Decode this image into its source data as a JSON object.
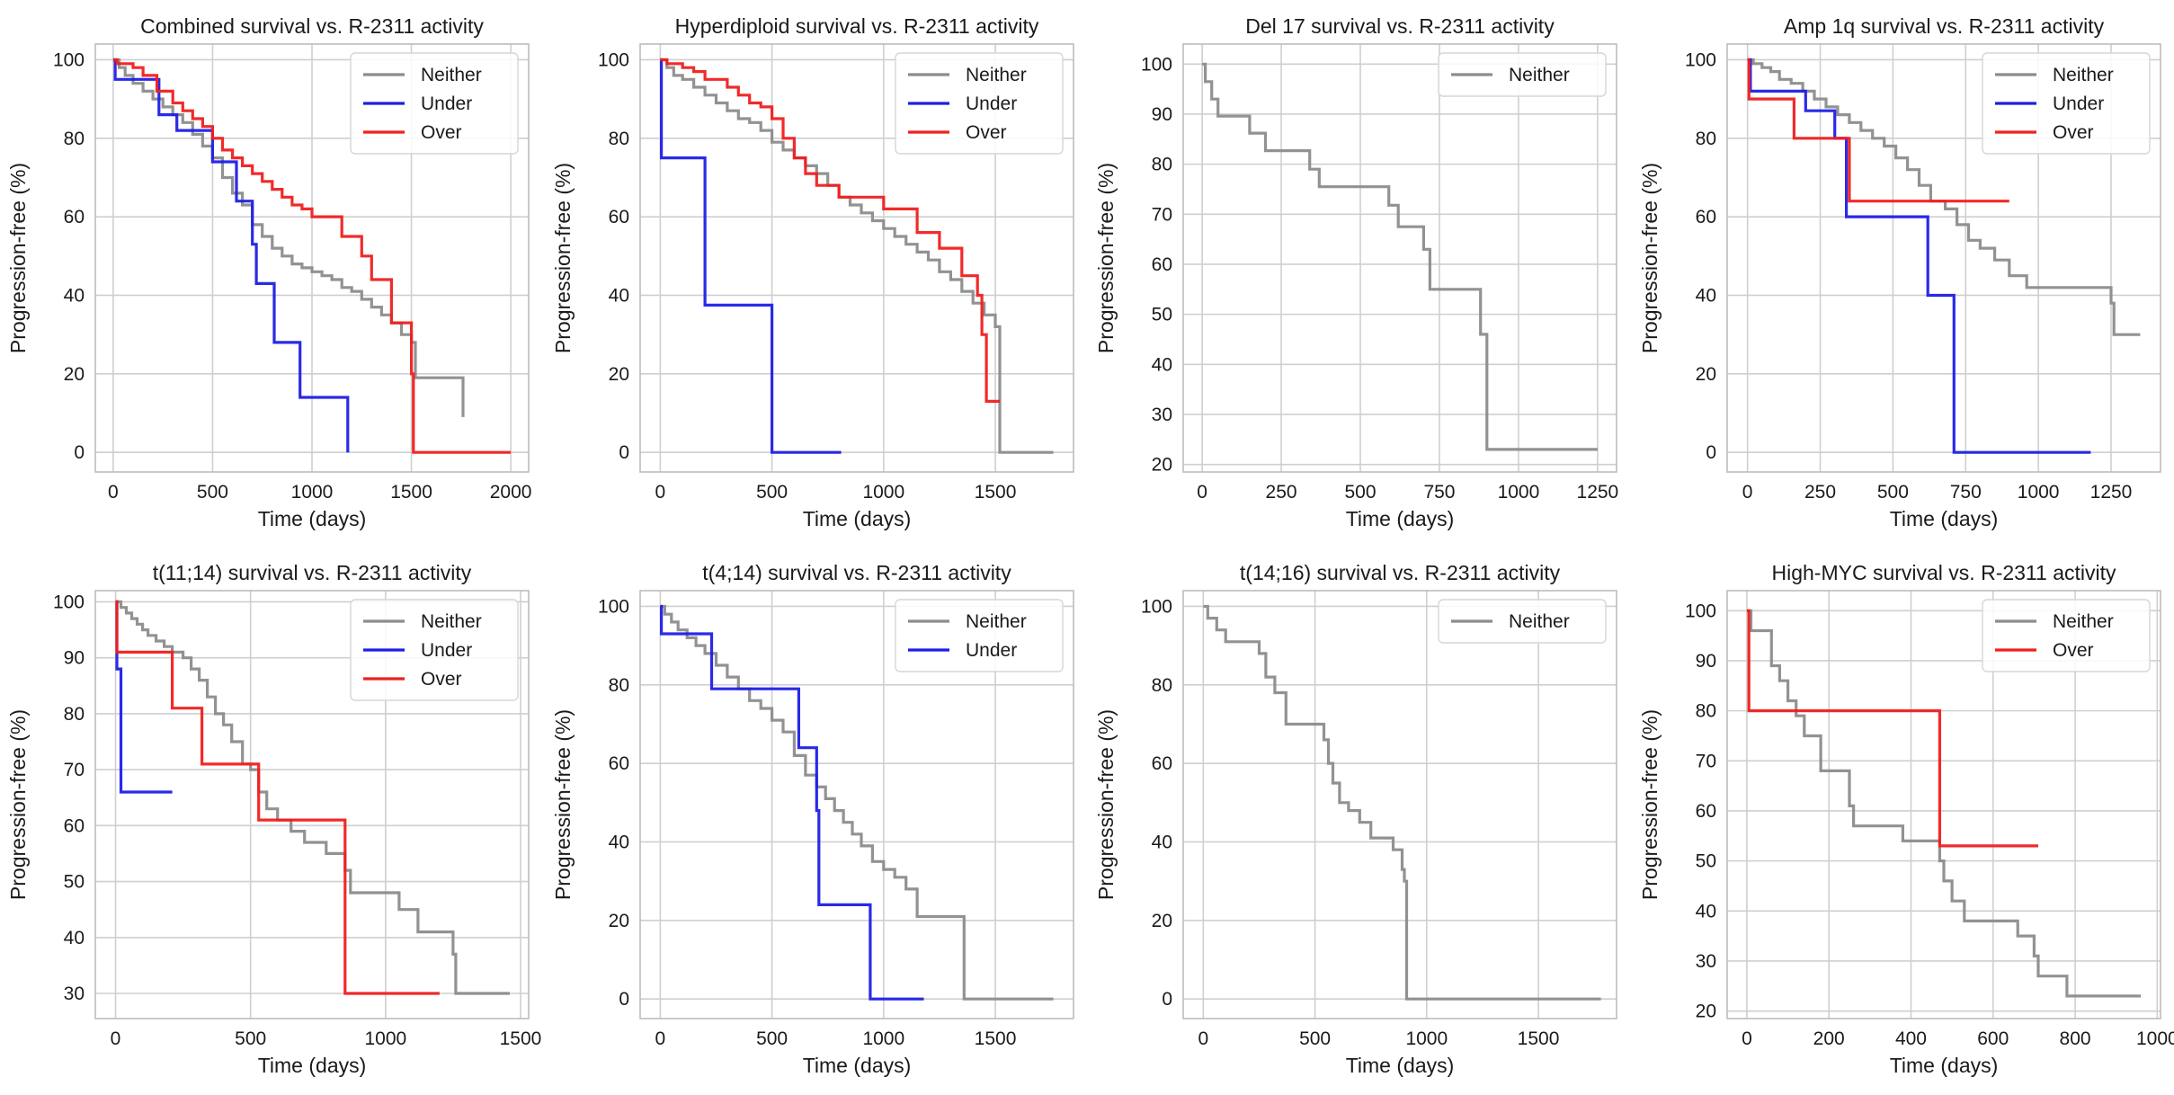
{
  "colors": {
    "Neither": "#8c8c8c",
    "Under": "#1f1fe6",
    "Over": "#f01f1f",
    "grid": "#cfcfcf",
    "axes": "#bdbdbd"
  },
  "chart_data": [
    {
      "type": "line",
      "step": true,
      "title": "Combined survival vs. R-2311 activity",
      "xlabel": "Time (days)",
      "ylabel": "Progression-free (%)",
      "xlim": [
        -90,
        2090
      ],
      "ylim": [
        -5,
        104
      ],
      "xticks": [
        0,
        500,
        1000,
        1500,
        2000
      ],
      "yticks": [
        0,
        20,
        40,
        60,
        80,
        100
      ],
      "legend": "top-right",
      "series": [
        {
          "name": "Neither",
          "x": [
            0,
            30,
            60,
            100,
            150,
            200,
            250,
            300,
            350,
            400,
            450,
            500,
            550,
            600,
            650,
            700,
            750,
            800,
            850,
            900,
            950,
            1000,
            1050,
            1100,
            1150,
            1200,
            1250,
            1300,
            1350,
            1400,
            1450,
            1500,
            1520,
            1750,
            1760
          ],
          "y": [
            100,
            98,
            96,
            94,
            92,
            90,
            88,
            86,
            84,
            81,
            78,
            75,
            70,
            66,
            63,
            58,
            55,
            52,
            50,
            48,
            47,
            46,
            45,
            44,
            42,
            41,
            39,
            37,
            35,
            33,
            30,
            28,
            19,
            19,
            9
          ]
        },
        {
          "name": "Under",
          "x": [
            0,
            10,
            180,
            230,
            320,
            500,
            620,
            700,
            720,
            810,
            940,
            1180
          ],
          "y": [
            100,
            95,
            95,
            86,
            82,
            74,
            64,
            53,
            43,
            28,
            14,
            0
          ]
        },
        {
          "name": "Over",
          "x": [
            0,
            20,
            100,
            150,
            220,
            300,
            350,
            400,
            450,
            500,
            550,
            600,
            650,
            700,
            750,
            800,
            850,
            900,
            950,
            1000,
            1150,
            1250,
            1300,
            1400,
            1500,
            1510,
            2000
          ],
          "y": [
            100,
            99,
            98,
            96,
            92,
            89,
            87,
            85,
            83,
            80,
            77,
            75,
            73,
            71,
            69,
            67,
            65,
            63,
            62,
            60,
            55,
            50,
            44,
            33,
            20,
            0,
            0
          ]
        }
      ]
    },
    {
      "type": "line",
      "step": true,
      "title": "Hyperdiploid survival vs. R-2311 activity",
      "xlabel": "Time (days)",
      "ylabel": "Progression-free (%)",
      "xlim": [
        -90,
        1850
      ],
      "ylim": [
        -5,
        104
      ],
      "xticks": [
        0,
        500,
        1000,
        1500
      ],
      "yticks": [
        0,
        20,
        40,
        60,
        80,
        100
      ],
      "legend": "top-right",
      "series": [
        {
          "name": "Neither",
          "x": [
            0,
            30,
            60,
            100,
            150,
            200,
            250,
            300,
            350,
            400,
            450,
            500,
            550,
            600,
            650,
            700,
            750,
            800,
            850,
            900,
            950,
            1000,
            1050,
            1100,
            1150,
            1200,
            1250,
            1300,
            1350,
            1400,
            1450,
            1500,
            1520,
            1760
          ],
          "y": [
            100,
            98,
            96,
            95,
            93,
            91,
            89,
            87,
            85,
            84,
            82,
            79,
            77,
            75,
            73,
            71,
            68,
            65,
            63,
            61,
            59,
            57,
            55,
            53,
            51,
            49,
            46,
            44,
            41,
            38,
            35,
            32,
            0,
            0
          ]
        },
        {
          "name": "Under",
          "x": [
            0,
            5,
            200,
            500,
            810
          ],
          "y": [
            100,
            75,
            37.5,
            0,
            0
          ]
        },
        {
          "name": "Over",
          "x": [
            0,
            30,
            100,
            150,
            200,
            300,
            350,
            400,
            450,
            500,
            550,
            600,
            650,
            700,
            800,
            1000,
            1150,
            1250,
            1350,
            1420,
            1440,
            1460,
            1520
          ],
          "y": [
            100,
            99,
            98,
            97,
            95,
            93,
            91,
            89,
            88,
            85,
            80,
            75,
            71,
            68,
            65,
            62,
            56,
            52,
            45,
            40,
            30,
            13,
            13
          ]
        }
      ]
    },
    {
      "type": "line",
      "step": true,
      "title": "Del 17 survival vs. R-2311 activity",
      "xlabel": "Time (days)",
      "ylabel": "Progression-free (%)",
      "xlim": [
        -60,
        1310
      ],
      "ylim": [
        18.5,
        104
      ],
      "xticks": [
        0,
        250,
        500,
        750,
        1000,
        1250
      ],
      "yticks": [
        20,
        30,
        40,
        50,
        60,
        70,
        80,
        90,
        100
      ],
      "legend": "top-right",
      "series": [
        {
          "name": "Neither",
          "x": [
            0,
            10,
            30,
            50,
            150,
            200,
            340,
            370,
            580,
            590,
            620,
            700,
            720,
            880,
            900,
            1250
          ],
          "y": [
            100,
            96.5,
            93,
            89.6,
            86.2,
            82.7,
            79,
            75.5,
            75.5,
            71.8,
            67.5,
            63,
            55,
            46,
            23,
            23
          ]
        }
      ]
    },
    {
      "type": "line",
      "step": true,
      "title": "Amp 1q survival vs. R-2311 activity",
      "xlabel": "Time (days)",
      "ylabel": "Progression-free (%)",
      "xlim": [
        -70,
        1420
      ],
      "ylim": [
        -5,
        104
      ],
      "xticks": [
        0,
        250,
        500,
        750,
        1000,
        1250
      ],
      "yticks": [
        0,
        20,
        40,
        60,
        80,
        100
      ],
      "legend": "top-right",
      "series": [
        {
          "name": "Neither",
          "x": [
            0,
            20,
            50,
            80,
            110,
            150,
            190,
            230,
            270,
            310,
            350,
            390,
            430,
            470,
            510,
            550,
            590,
            630,
            680,
            720,
            760,
            800,
            850,
            900,
            960,
            1250,
            1260,
            1280,
            1350
          ],
          "y": [
            100,
            99,
            98,
            97,
            95,
            94,
            92,
            90,
            88,
            86,
            84,
            82,
            80,
            78,
            75,
            72,
            68,
            64,
            62,
            58,
            54,
            52,
            49,
            45,
            42,
            38,
            30,
            30,
            30
          ]
        },
        {
          "name": "Under",
          "x": [
            0,
            10,
            200,
            300,
            340,
            620,
            710,
            1180
          ],
          "y": [
            100,
            92,
            87,
            80,
            60,
            40,
            0,
            0
          ]
        },
        {
          "name": "Over",
          "x": [
            0,
            5,
            160,
            350,
            900
          ],
          "y": [
            100,
            90,
            80,
            64,
            64
          ]
        }
      ]
    },
    {
      "type": "line",
      "step": true,
      "title": "t(11;14) survival vs. R-2311 activity",
      "xlabel": "Time (days)",
      "ylabel": "Progression-free (%)",
      "xlim": [
        -75,
        1530
      ],
      "ylim": [
        25.5,
        102
      ],
      "xticks": [
        0,
        500,
        1000,
        1500
      ],
      "yticks": [
        30,
        40,
        50,
        60,
        70,
        80,
        90,
        100
      ],
      "legend": "top-right",
      "series": [
        {
          "name": "Neither",
          "x": [
            0,
            20,
            40,
            60,
            80,
            100,
            120,
            150,
            180,
            210,
            250,
            280,
            310,
            340,
            370,
            400,
            430,
            470,
            500,
            530,
            560,
            600,
            650,
            700,
            780,
            850,
            870,
            1050,
            1120,
            1250,
            1260,
            1460
          ],
          "y": [
            100,
            99,
            98,
            97,
            96,
            95,
            94,
            93,
            92,
            91,
            90,
            88,
            86,
            83,
            80,
            78,
            75,
            71,
            70,
            66,
            63,
            61,
            59,
            57,
            55,
            52,
            48,
            45,
            41,
            37,
            30,
            30
          ]
        },
        {
          "name": "Under",
          "x": [
            0,
            5,
            20,
            210
          ],
          "y": [
            100,
            88,
            66,
            66
          ]
        },
        {
          "name": "Over",
          "x": [
            0,
            5,
            210,
            320,
            530,
            850,
            1200
          ],
          "y": [
            100,
            91,
            81,
            71,
            61,
            30,
            30
          ]
        }
      ]
    },
    {
      "type": "line",
      "step": true,
      "title": "t(4;14) survival vs. R-2311 activity",
      "xlabel": "Time (days)",
      "ylabel": "Progression-free (%)",
      "xlim": [
        -90,
        1850
      ],
      "ylim": [
        -5,
        104
      ],
      "xticks": [
        0,
        500,
        1000,
        1500
      ],
      "yticks": [
        0,
        20,
        40,
        60,
        80,
        100
      ],
      "legend": "top-right",
      "series": [
        {
          "name": "Neither",
          "x": [
            0,
            20,
            50,
            80,
            120,
            160,
            200,
            250,
            300,
            350,
            400,
            450,
            500,
            550,
            600,
            650,
            700,
            740,
            780,
            820,
            860,
            900,
            950,
            1000,
            1050,
            1100,
            1150,
            1340,
            1360,
            1760
          ],
          "y": [
            100,
            98,
            96,
            94,
            92,
            90,
            88,
            85,
            82,
            79,
            76,
            74,
            71,
            68,
            62,
            57,
            54,
            51,
            48,
            45,
            42,
            39,
            35,
            33,
            31,
            28,
            21,
            21,
            0,
            0
          ]
        },
        {
          "name": "Under",
          "x": [
            0,
            5,
            230,
            620,
            700,
            710,
            940,
            1180
          ],
          "y": [
            100,
            93,
            79,
            64,
            48,
            24,
            0,
            0
          ]
        }
      ]
    },
    {
      "type": "line",
      "step": true,
      "title": "t(14;16) survival vs. R-2311 activity",
      "xlabel": "Time (days)",
      "ylabel": "Progression-free (%)",
      "xlim": [
        -90,
        1850
      ],
      "ylim": [
        -5,
        104
      ],
      "xticks": [
        0,
        500,
        1000,
        1500
      ],
      "yticks": [
        0,
        20,
        40,
        60,
        80,
        100
      ],
      "legend": "top-right",
      "series": [
        {
          "name": "Neither",
          "x": [
            0,
            20,
            60,
            100,
            250,
            280,
            320,
            370,
            540,
            560,
            580,
            610,
            650,
            700,
            750,
            850,
            890,
            900,
            910,
            1780
          ],
          "y": [
            100,
            97,
            94,
            91,
            88,
            82,
            78,
            70,
            66,
            60,
            55,
            50,
            48,
            45,
            41,
            38,
            33,
            30,
            0,
            0
          ]
        }
      ]
    },
    {
      "type": "line",
      "step": true,
      "title": "High-MYC survival vs. R-2311 activity",
      "xlabel": "Time (days)",
      "ylabel": "Progression-free (%)",
      "xlim": [
        -48,
        1008
      ],
      "ylim": [
        18.5,
        104
      ],
      "xticks": [
        0,
        200,
        400,
        600,
        800,
        1000
      ],
      "yticks": [
        20,
        30,
        40,
        50,
        60,
        70,
        80,
        90,
        100
      ],
      "legend": "top-right",
      "series": [
        {
          "name": "Neither",
          "x": [
            0,
            10,
            60,
            80,
            100,
            120,
            140,
            180,
            250,
            260,
            270,
            380,
            470,
            480,
            500,
            530,
            560,
            660,
            700,
            710,
            740,
            780,
            960
          ],
          "y": [
            100,
            96,
            89,
            86,
            82,
            79,
            75,
            68,
            61,
            57,
            57,
            54,
            50,
            46,
            42,
            38,
            38,
            35,
            31,
            27,
            27,
            23,
            23
          ]
        },
        {
          "name": "Over",
          "x": [
            0,
            5,
            470,
            710
          ],
          "y": [
            100,
            80,
            53,
            53
          ]
        }
      ]
    }
  ]
}
